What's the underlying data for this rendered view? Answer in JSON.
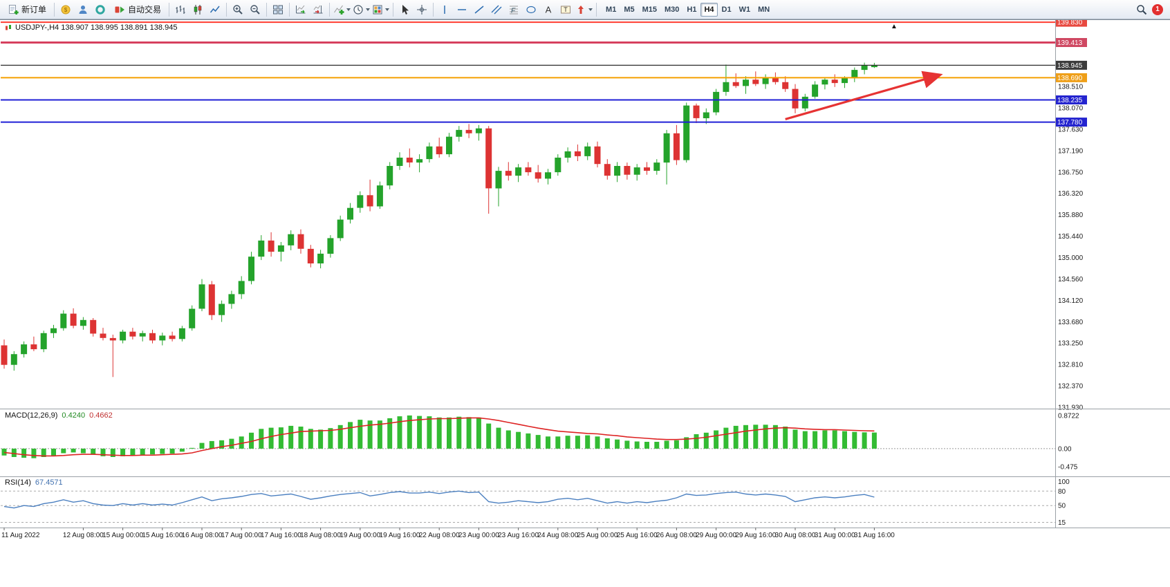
{
  "toolbar": {
    "buttons": [
      {
        "name": "new-order",
        "icon": "new-order-icon",
        "label": "新订单"
      },
      {
        "sep": true
      },
      {
        "name": "market-watch",
        "icon": "market-watch-icon"
      },
      {
        "name": "navigator",
        "icon": "navigator-icon"
      },
      {
        "name": "support",
        "icon": "support-icon"
      },
      {
        "name": "autotrading",
        "icon": "autotrading-icon",
        "label": "自动交易"
      },
      {
        "sep": true
      },
      {
        "name": "bar-chart",
        "icon": "bar-chart-icon"
      },
      {
        "name": "candlestick-chart",
        "icon": "candlestick-chart-icon"
      },
      {
        "name": "line-chart",
        "icon": "line-chart-icon"
      },
      {
        "sep": true
      },
      {
        "name": "zoom-in",
        "icon": "zoom-in-icon"
      },
      {
        "name": "zoom-out",
        "icon": "zoom-out-icon"
      },
      {
        "sep": true
      },
      {
        "name": "tile-windows",
        "icon": "tile-windows-icon"
      },
      {
        "sep": true
      },
      {
        "name": "auto-scroll",
        "icon": "auto-scroll-icon"
      },
      {
        "name": "chart-shift",
        "icon": "chart-shift-icon"
      },
      {
        "sep": true
      },
      {
        "name": "indicators",
        "icon": "indicators-icon",
        "caret": true
      },
      {
        "name": "periods",
        "icon": "periods-icon",
        "caret": true
      },
      {
        "name": "templates",
        "icon": "templates-icon",
        "caret": true
      },
      {
        "sep": true
      },
      {
        "name": "cursor",
        "icon": "cursor-icon"
      },
      {
        "name": "crosshair",
        "icon": "crosshair-icon"
      },
      {
        "sep": true
      },
      {
        "name": "vertical-line",
        "icon": "vertical-line-icon"
      },
      {
        "name": "horizontal-line",
        "icon": "horizontal-line-icon"
      },
      {
        "name": "trendline",
        "icon": "trendline-icon"
      },
      {
        "name": "channel",
        "icon": "channel-icon"
      },
      {
        "name": "fibonacci",
        "icon": "fibonacci-icon"
      },
      {
        "name": "shapes",
        "icon": "shapes-icon"
      },
      {
        "name": "text",
        "icon": "text-icon"
      },
      {
        "name": "text-label",
        "icon": "text-label-icon"
      },
      {
        "name": "arrows",
        "icon": "arrows-icon",
        "caret": true
      },
      {
        "sep": true
      }
    ],
    "timeframes": [
      "M1",
      "M5",
      "M15",
      "M30",
      "H1",
      "H4",
      "D1",
      "W1",
      "MN"
    ],
    "active_timeframe": "H4",
    "right": {
      "search_icon": "search-icon",
      "notification_count": "1"
    }
  },
  "chart": {
    "title_text": "USDJPY-,H4 138.907 138.995 138.891 138.945",
    "symbol": "USDJPY-",
    "timeframe": "H4",
    "ohlc_now": {
      "open": "138.907",
      "high": "138.995",
      "low": "138.891",
      "close": "138.945"
    },
    "price_scale": [
      "138.510",
      "138.070",
      "137.630",
      "137.190",
      "136.750",
      "136.320",
      "135.880",
      "135.440",
      "135.000",
      "134.560",
      "134.120",
      "133.680",
      "133.250",
      "132.810",
      "132.370",
      "131.930"
    ],
    "levels": [
      {
        "label": "139.830",
        "price": 139.83,
        "line": "#ff3b30",
        "bg": "#e8483f",
        "width": 2
      },
      {
        "label": "139.413",
        "price": 139.413,
        "line": "#d6405e",
        "bg": "#cf4862",
        "width": 3
      },
      {
        "label": "138.945",
        "price": 138.945,
        "line": "#2b2b2b",
        "bg": "#3c3c3c",
        "width": 1.2
      },
      {
        "label": "138.690",
        "price": 138.69,
        "line": "#f5a000",
        "bg": "#ef9f18",
        "width": 2
      },
      {
        "label": "138.235",
        "price": 138.235,
        "line": "#1f1fd6",
        "bg": "#2424cf",
        "width": 2
      },
      {
        "label": "137.780",
        "price": 137.78,
        "line": "#1f1fd6",
        "bg": "#2424cf",
        "width": 2
      }
    ]
  },
  "chart_data": [
    {
      "type": "candlestick",
      "title": "USDJPY-,H4",
      "ylim": [
        131.93,
        139.845
      ],
      "up_color": "#24a32b",
      "down_color": "#dd3333",
      "time_labels": [
        {
          "i": 0,
          "t": "11 Aug 2022"
        },
        {
          "i": 8,
          "t": "12 Aug 08:00"
        },
        {
          "i": 12,
          "t": "15 Aug 00:00"
        },
        {
          "i": 16,
          "t": "15 Aug 16:00"
        },
        {
          "i": 20,
          "t": "16 Aug 08:00"
        },
        {
          "i": 24,
          "t": "17 Aug 00:00"
        },
        {
          "i": 28,
          "t": "17 Aug 16:00"
        },
        {
          "i": 32,
          "t": "18 Aug 08:00"
        },
        {
          "i": 36,
          "t": "19 Aug 00:00"
        },
        {
          "i": 40,
          "t": "19 Aug 16:00"
        },
        {
          "i": 44,
          "t": "22 Aug 08:00"
        },
        {
          "i": 48,
          "t": "23 Aug 00:00"
        },
        {
          "i": 52,
          "t": "23 Aug 16:00"
        },
        {
          "i": 56,
          "t": "24 Aug 08:00"
        },
        {
          "i": 60,
          "t": "25 Aug 00:00"
        },
        {
          "i": 64,
          "t": "25 Aug 16:00"
        },
        {
          "i": 68,
          "t": "26 Aug 08:00"
        },
        {
          "i": 72,
          "t": "29 Aug 00:00"
        },
        {
          "i": 76,
          "t": "29 Aug 16:00"
        },
        {
          "i": 80,
          "t": "30 Aug 08:00"
        },
        {
          "i": 84,
          "t": "31 Aug 00:00"
        },
        {
          "i": 88,
          "t": "31 Aug 16:00"
        }
      ],
      "ohlc": [
        [
          133.2,
          133.32,
          132.72,
          132.8
        ],
        [
          132.8,
          133.08,
          132.68,
          133.02
        ],
        [
          133.02,
          133.28,
          132.95,
          133.22
        ],
        [
          133.22,
          133.38,
          133.08,
          133.12
        ],
        [
          133.12,
          133.5,
          133.06,
          133.45
        ],
        [
          133.45,
          133.62,
          133.35,
          133.55
        ],
        [
          133.55,
          133.92,
          133.5,
          133.85
        ],
        [
          133.85,
          133.96,
          133.55,
          133.6
        ],
        [
          133.6,
          133.78,
          133.52,
          133.72
        ],
        [
          133.72,
          133.76,
          133.38,
          133.44
        ],
        [
          133.44,
          133.56,
          133.3,
          133.35
        ],
        [
          133.35,
          133.42,
          132.55,
          133.3
        ],
        [
          133.3,
          133.52,
          133.24,
          133.48
        ],
        [
          133.48,
          133.56,
          133.32,
          133.38
        ],
        [
          133.38,
          133.5,
          133.28,
          133.45
        ],
        [
          133.45,
          133.52,
          133.24,
          133.3
        ],
        [
          133.3,
          133.46,
          133.2,
          133.4
        ],
        [
          133.4,
          133.48,
          133.28,
          133.33
        ],
        [
          133.33,
          133.6,
          133.28,
          133.55
        ],
        [
          133.55,
          134.02,
          133.5,
          133.95
        ],
        [
          133.95,
          134.56,
          133.9,
          134.45
        ],
        [
          134.45,
          134.52,
          133.72,
          133.82
        ],
        [
          133.82,
          134.12,
          133.68,
          134.05
        ],
        [
          134.05,
          134.32,
          133.95,
          134.25
        ],
        [
          134.25,
          134.62,
          134.15,
          134.52
        ],
        [
          134.52,
          135.12,
          134.45,
          135.02
        ],
        [
          135.02,
          135.46,
          134.95,
          135.35
        ],
        [
          135.35,
          135.52,
          135.02,
          135.12
        ],
        [
          135.12,
          135.32,
          134.92,
          135.25
        ],
        [
          135.25,
          135.56,
          135.15,
          135.48
        ],
        [
          135.48,
          135.58,
          135.08,
          135.18
        ],
        [
          135.18,
          135.26,
          134.8,
          134.88
        ],
        [
          134.88,
          135.16,
          134.78,
          135.08
        ],
        [
          135.08,
          135.46,
          135.0,
          135.4
        ],
        [
          135.4,
          135.86,
          135.34,
          135.78
        ],
        [
          135.78,
          136.12,
          135.7,
          136.02
        ],
        [
          136.02,
          136.36,
          135.92,
          136.28
        ],
        [
          136.28,
          136.6,
          135.95,
          136.05
        ],
        [
          136.05,
          136.56,
          136.0,
          136.48
        ],
        [
          136.48,
          136.96,
          136.4,
          136.88
        ],
        [
          136.88,
          137.16,
          136.8,
          137.05
        ],
        [
          137.05,
          137.24,
          136.85,
          136.95
        ],
        [
          136.95,
          137.12,
          136.75,
          137.02
        ],
        [
          137.02,
          137.36,
          136.95,
          137.28
        ],
        [
          137.28,
          137.46,
          137.05,
          137.12
        ],
        [
          137.12,
          137.56,
          137.06,
          137.48
        ],
        [
          137.48,
          137.7,
          137.38,
          137.62
        ],
        [
          137.62,
          137.74,
          137.45,
          137.55
        ],
        [
          137.55,
          137.72,
          137.4,
          137.65
        ],
        [
          137.65,
          137.7,
          135.9,
          136.42
        ],
        [
          136.42,
          136.86,
          136.05,
          136.78
        ],
        [
          136.78,
          136.96,
          136.58,
          136.68
        ],
        [
          136.68,
          136.92,
          136.55,
          136.85
        ],
        [
          136.85,
          136.96,
          136.68,
          136.75
        ],
        [
          136.75,
          136.9,
          136.54,
          136.62
        ],
        [
          136.62,
          136.82,
          136.5,
          136.75
        ],
        [
          136.75,
          137.12,
          136.68,
          137.05
        ],
        [
          137.05,
          137.26,
          136.95,
          137.18
        ],
        [
          137.18,
          137.32,
          136.98,
          137.08
        ],
        [
          137.08,
          137.36,
          137.0,
          137.28
        ],
        [
          137.28,
          137.38,
          136.85,
          136.92
        ],
        [
          136.92,
          137.02,
          136.6,
          136.68
        ],
        [
          136.68,
          136.96,
          136.55,
          136.88
        ],
        [
          136.88,
          136.95,
          136.6,
          136.7
        ],
        [
          136.7,
          136.92,
          136.58,
          136.85
        ],
        [
          136.85,
          136.96,
          136.7,
          136.78
        ],
        [
          136.78,
          137.02,
          136.7,
          136.95
        ],
        [
          136.95,
          137.62,
          136.5,
          137.55
        ],
        [
          137.55,
          137.72,
          136.9,
          137.0
        ],
        [
          137.0,
          138.18,
          136.95,
          138.12
        ],
        [
          138.12,
          138.16,
          137.76,
          137.86
        ],
        [
          137.86,
          138.06,
          137.74,
          137.98
        ],
        [
          137.98,
          138.46,
          137.92,
          138.4
        ],
        [
          138.4,
          138.96,
          138.32,
          138.6
        ],
        [
          138.6,
          138.78,
          138.48,
          138.52
        ],
        [
          138.52,
          138.72,
          138.36,
          138.65
        ],
        [
          138.65,
          138.82,
          138.52,
          138.56
        ],
        [
          138.56,
          138.76,
          138.46,
          138.7
        ],
        [
          138.7,
          138.8,
          138.55,
          138.6
        ],
        [
          138.6,
          138.72,
          138.4,
          138.46
        ],
        [
          138.46,
          138.56,
          137.96,
          138.06
        ],
        [
          138.06,
          138.36,
          138.0,
          138.3
        ],
        [
          138.3,
          138.62,
          138.26,
          138.55
        ],
        [
          138.55,
          138.7,
          138.45,
          138.65
        ],
        [
          138.65,
          138.76,
          138.5,
          138.58
        ],
        [
          138.58,
          138.72,
          138.48,
          138.68
        ],
        [
          138.68,
          138.9,
          138.6,
          138.85
        ],
        [
          138.85,
          139.0,
          138.76,
          138.95
        ],
        [
          138.907,
          138.995,
          138.891,
          138.945
        ]
      ]
    },
    {
      "type": "bar",
      "name": "MACD(12,26,9)",
      "current_main": "0.4240",
      "current_signal": "0.4662",
      "ylim": [
        -0.62,
        0.98
      ],
      "zero_level": 0,
      "scale_labels": [
        "0.8722",
        "0.00",
        "-0.475"
      ],
      "histogram_color": "#33bb33",
      "signal_color": "#dd2222",
      "histogram": [
        -0.18,
        -0.22,
        -0.24,
        -0.25,
        -0.22,
        -0.18,
        -0.12,
        -0.1,
        -0.12,
        -0.16,
        -0.2,
        -0.22,
        -0.2,
        -0.18,
        -0.16,
        -0.15,
        -0.14,
        -0.13,
        -0.08,
        0.02,
        0.15,
        0.2,
        0.22,
        0.26,
        0.32,
        0.42,
        0.52,
        0.55,
        0.56,
        0.6,
        0.58,
        0.52,
        0.5,
        0.54,
        0.62,
        0.7,
        0.76,
        0.74,
        0.74,
        0.8,
        0.85,
        0.872,
        0.86,
        0.85,
        0.82,
        0.82,
        0.84,
        0.83,
        0.82,
        0.66,
        0.55,
        0.48,
        0.44,
        0.4,
        0.36,
        0.32,
        0.32,
        0.34,
        0.34,
        0.35,
        0.32,
        0.27,
        0.24,
        0.21,
        0.19,
        0.18,
        0.18,
        0.21,
        0.22,
        0.3,
        0.38,
        0.42,
        0.48,
        0.55,
        0.6,
        0.62,
        0.63,
        0.63,
        0.62,
        0.58,
        0.5,
        0.46,
        0.46,
        0.48,
        0.48,
        0.46,
        0.44,
        0.43,
        0.424
      ],
      "signal": [
        -0.1,
        -0.13,
        -0.16,
        -0.18,
        -0.19,
        -0.19,
        -0.18,
        -0.16,
        -0.15,
        -0.15,
        -0.16,
        -0.17,
        -0.18,
        -0.18,
        -0.17,
        -0.17,
        -0.16,
        -0.15,
        -0.14,
        -0.11,
        -0.05,
        0.0,
        0.05,
        0.09,
        0.14,
        0.19,
        0.26,
        0.32,
        0.37,
        0.41,
        0.45,
        0.46,
        0.47,
        0.48,
        0.51,
        0.55,
        0.59,
        0.62,
        0.64,
        0.67,
        0.71,
        0.74,
        0.76,
        0.78,
        0.79,
        0.79,
        0.8,
        0.81,
        0.81,
        0.78,
        0.74,
        0.69,
        0.64,
        0.59,
        0.54,
        0.5,
        0.46,
        0.44,
        0.42,
        0.4,
        0.39,
        0.36,
        0.34,
        0.31,
        0.29,
        0.27,
        0.25,
        0.24,
        0.24,
        0.25,
        0.27,
        0.3,
        0.34,
        0.38,
        0.42,
        0.46,
        0.49,
        0.52,
        0.54,
        0.55,
        0.54,
        0.52,
        0.51,
        0.5,
        0.5,
        0.49,
        0.48,
        0.47,
        0.4662
      ]
    },
    {
      "type": "line",
      "name": "RSI(14)",
      "current": "67.4571",
      "ylim": [
        10,
        102
      ],
      "levels": [
        80,
        50,
        15
      ],
      "scale_labels": [
        "100",
        "80",
        "50",
        "15"
      ],
      "color": "#4a7fc0",
      "values": [
        48,
        45,
        50,
        48,
        54,
        57,
        62,
        57,
        60,
        54,
        51,
        50,
        54,
        51,
        54,
        51,
        53,
        51,
        56,
        62,
        68,
        60,
        64,
        66,
        69,
        73,
        75,
        70,
        72,
        74,
        69,
        63,
        66,
        70,
        73,
        75,
        77,
        70,
        73,
        77,
        79,
        76,
        76,
        78,
        75,
        78,
        80,
        77,
        78,
        58,
        55,
        57,
        60,
        58,
        56,
        58,
        63,
        65,
        62,
        65,
        60,
        55,
        58,
        55,
        58,
        56,
        59,
        61,
        66,
        74,
        71,
        72,
        75,
        77,
        78,
        74,
        72,
        74,
        72,
        69,
        58,
        62,
        66,
        68,
        66,
        68,
        71,
        73,
        67.4571
      ]
    }
  ],
  "annotations": {
    "trend_arrow": {
      "from": {
        "i": 79,
        "price": 137.84
      },
      "to": {
        "i": 94.5,
        "price": 138.74
      },
      "color": "#e63333",
      "width": 3.2
    },
    "top_marker": {
      "i": 90,
      "price": 139.8,
      "glyph": "▲",
      "color": "#111111"
    }
  }
}
